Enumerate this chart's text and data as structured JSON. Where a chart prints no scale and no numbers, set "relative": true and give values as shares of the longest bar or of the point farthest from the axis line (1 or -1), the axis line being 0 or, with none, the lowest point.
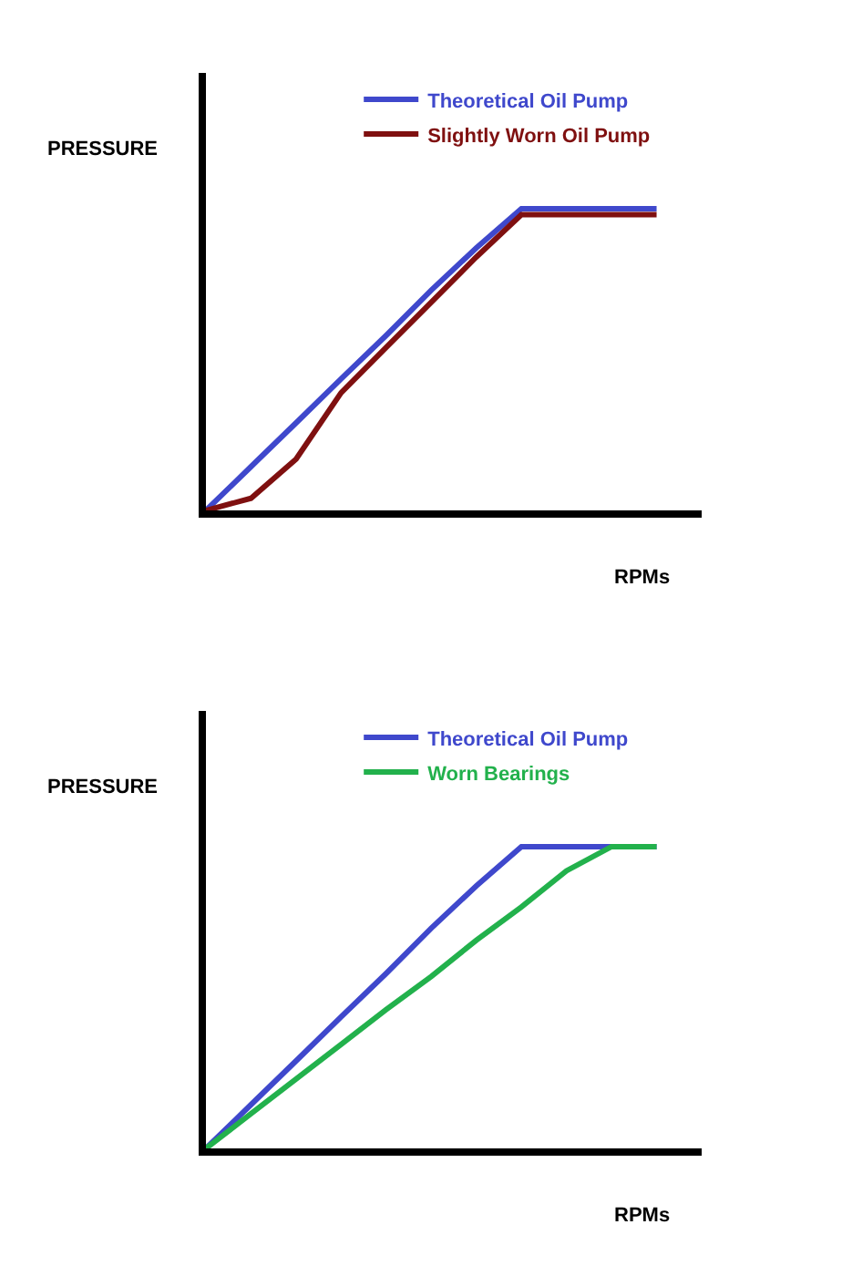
{
  "chart_data": [
    {
      "type": "line",
      "ylabel": "PRESSURE",
      "xlabel": "RPMs",
      "relative": true,
      "legend": "top",
      "grid": false,
      "marker": "none",
      "line_style": "solid",
      "categories": [
        null,
        null,
        null,
        null,
        null,
        null,
        null,
        null,
        null,
        null,
        null
      ],
      "series": [
        {
          "name": "Theoretical Oil Pump",
          "color": "#3f48cc",
          "values": [
            0,
            0.145,
            0.29,
            0.436,
            0.58,
            0.73,
            0.87,
            1,
            1,
            1,
            1
          ]
        },
        {
          "name": "Slightly Worn Oil Pump",
          "color": "#7f1010",
          "values": [
            0,
            0.04,
            0.17,
            0.39,
            0.54,
            0.69,
            0.84,
            0.98,
            0.98,
            0.98,
            0.98
          ]
        }
      ]
    },
    {
      "type": "line",
      "ylabel": "PRESSURE",
      "xlabel": "RPMs",
      "relative": true,
      "legend": "top",
      "grid": false,
      "marker": "none",
      "line_style": "solid",
      "categories": [
        null,
        null,
        null,
        null,
        null,
        null,
        null,
        null,
        null,
        null,
        null
      ],
      "series": [
        {
          "name": "Theoretical Oil Pump",
          "color": "#3f48cc",
          "values": [
            0,
            0.145,
            0.29,
            0.436,
            0.58,
            0.73,
            0.87,
            1,
            1,
            1,
            1
          ]
        },
        {
          "name": "Worn Bearings",
          "color": "#22b14c",
          "values": [
            0,
            0.115,
            0.23,
            0.345,
            0.46,
            0.57,
            0.69,
            0.8,
            0.92,
            1,
            1
          ]
        }
      ]
    }
  ]
}
